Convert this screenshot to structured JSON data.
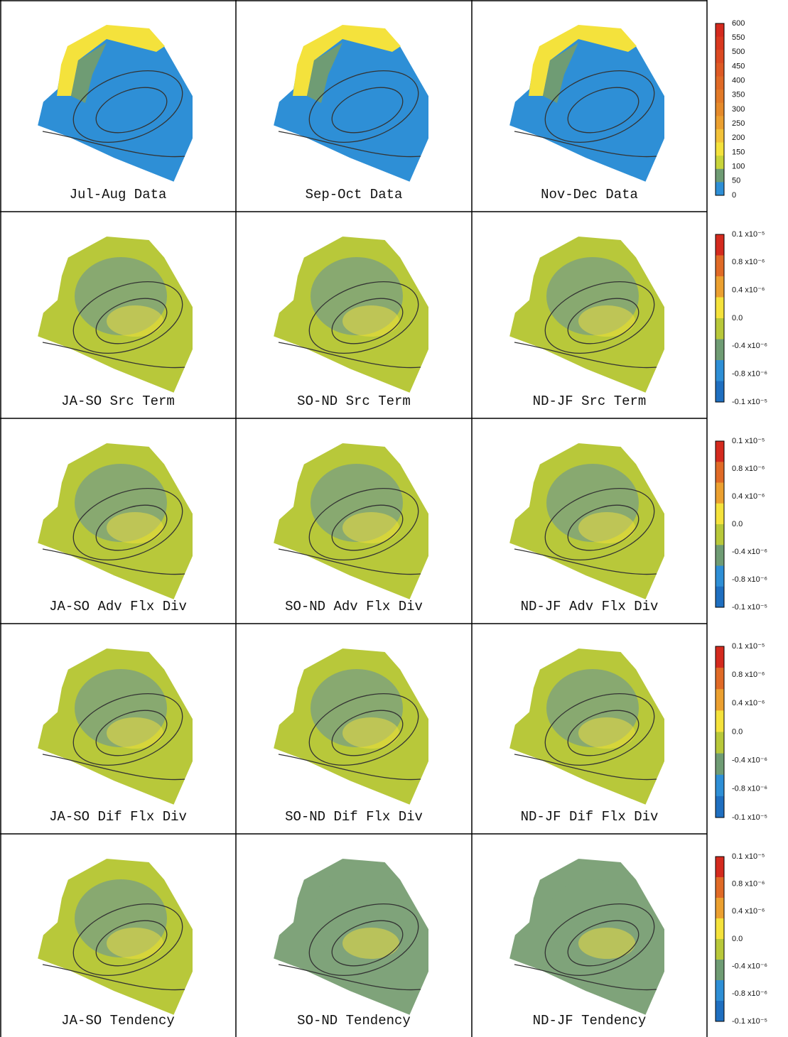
{
  "rows": [
    {
      "panels": [
        "Jul-Aug Data",
        "Sep-Oct Data",
        "Nov-Dec Data"
      ],
      "colorbar": {
        "ticks": [
          600,
          550,
          500,
          450,
          400,
          350,
          300,
          250,
          200,
          150,
          100,
          50,
          0
        ],
        "colors": [
          "#d42a1e",
          "#d9381f",
          "#dc4a22",
          "#de5a24",
          "#e06a26",
          "#e27a28",
          "#e58a2a",
          "#eba030",
          "#f2c23a",
          "#f4e23c",
          "#c8d43a",
          "#6f9c74",
          "#2e8fd6"
        ]
      }
    },
    {
      "panels": [
        "JA-SO Src Term",
        "SO-ND Src Term",
        "ND-JF Src Term"
      ],
      "colorbar": {
        "ticks": [
          "0.1 x10⁻⁵",
          "0.8 x10⁻⁶",
          "0.4 x10⁻⁶",
          "0.0",
          "-0.4 x10⁻⁶",
          "-0.8 x10⁻⁶",
          "-0.1 x10⁻⁵"
        ],
        "colors": [
          "#d42a1e",
          "#e06a26",
          "#eba030",
          "#f4e23c",
          "#b8c83a",
          "#6f9c74",
          "#2e8fd6",
          "#1f6fc0"
        ]
      }
    },
    {
      "panels": [
        "JA-SO Adv Flx Div",
        "SO-ND Adv Flx Div",
        "ND-JF Adv Flx Div"
      ],
      "colorbar": {
        "ticks": [
          "0.1 x10⁻⁵",
          "0.8 x10⁻⁶",
          "0.4 x10⁻⁶",
          "0.0",
          "-0.4 x10⁻⁶",
          "-0.8 x10⁻⁶",
          "-0.1 x10⁻⁵"
        ],
        "colors": [
          "#d42a1e",
          "#e06a26",
          "#eba030",
          "#f4e23c",
          "#b8c83a",
          "#6f9c74",
          "#2e8fd6",
          "#1f6fc0"
        ]
      }
    },
    {
      "panels": [
        "JA-SO Dif Flx Div",
        "SO-ND Dif Flx Div",
        "ND-JF Dif Flx Div"
      ],
      "colorbar": {
        "ticks": [
          "0.1 x10⁻⁵",
          "0.8 x10⁻⁶",
          "0.4 x10⁻⁶",
          "0.0",
          "-0.4 x10⁻⁶",
          "-0.8 x10⁻⁶",
          "-0.1 x10⁻⁵"
        ],
        "colors": [
          "#d42a1e",
          "#e06a26",
          "#eba030",
          "#f4e23c",
          "#b8c83a",
          "#6f9c74",
          "#2e8fd6",
          "#1f6fc0"
        ]
      }
    },
    {
      "panels": [
        "JA-SO Tendency",
        "SO-ND Tendency",
        "ND-JF Tendency"
      ],
      "colorbar": {
        "ticks": [
          "0.1 x10⁻⁵",
          "0.8 x10⁻⁶",
          "0.4 x10⁻⁶",
          "0.0",
          "-0.4 x10⁻⁶",
          "-0.8 x10⁻⁶",
          "-0.1 x10⁻⁵"
        ],
        "colors": [
          "#d42a1e",
          "#e06a26",
          "#eba030",
          "#f4e23c",
          "#b8c83a",
          "#6f9c74",
          "#2e8fd6",
          "#1f6fc0"
        ]
      }
    }
  ]
}
